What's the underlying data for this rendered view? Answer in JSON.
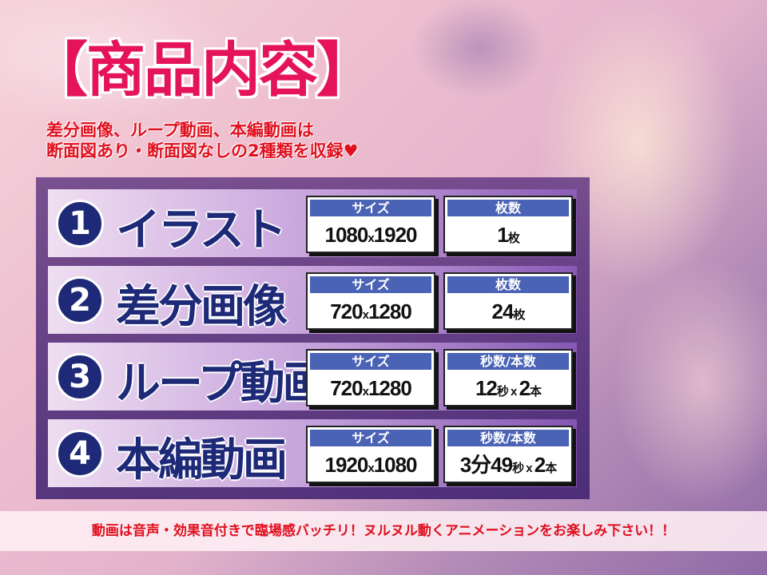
{
  "title": "【商品内容】",
  "subtitle": {
    "line1": "差分画像、ループ動画、本編動画は",
    "line2": "断面図あり・断面図なしの2種類を収録♥"
  },
  "items": [
    {
      "num": "1",
      "label": "イラスト",
      "box1": {
        "header": "サイズ",
        "value": "1080",
        "unit": "x",
        "value2": "1920",
        "unit2": ""
      },
      "box2": {
        "header": "枚数",
        "value": "1",
        "unit": "枚",
        "value2": "",
        "unit2": ""
      }
    },
    {
      "num": "2",
      "label": "差分画像",
      "box1": {
        "header": "サイズ",
        "value": "720",
        "unit": "x",
        "value2": "1280",
        "unit2": ""
      },
      "box2": {
        "header": "枚数",
        "value": "24",
        "unit": "枚",
        "value2": "",
        "unit2": ""
      }
    },
    {
      "num": "3",
      "label": "ループ動画",
      "box1": {
        "header": "サイズ",
        "value": "720",
        "unit": "x",
        "value2": "1280",
        "unit2": ""
      },
      "box2": {
        "header": "秒数/本数",
        "value": "12",
        "unit": "秒 x ",
        "value2": "2",
        "unit2": "本"
      }
    },
    {
      "num": "4",
      "label": "本編動画",
      "box1": {
        "header": "サイズ",
        "value": "1920",
        "unit": "x",
        "value2": "1080",
        "unit2": ""
      },
      "box2": {
        "header": "秒数/本数",
        "value": "3分49",
        "unit": "秒 x ",
        "value2": "2",
        "unit2": "本"
      }
    }
  ],
  "footer": "動画は音声・効果音付きで臨場感バッチリ！ヌルヌル動くアニメーションをお楽しみ下さい！！",
  "colors": {
    "title": "#e5145a",
    "navy": "#1e2a78",
    "header_blue": "#4a63b5",
    "red_text": "#e00f1e"
  }
}
